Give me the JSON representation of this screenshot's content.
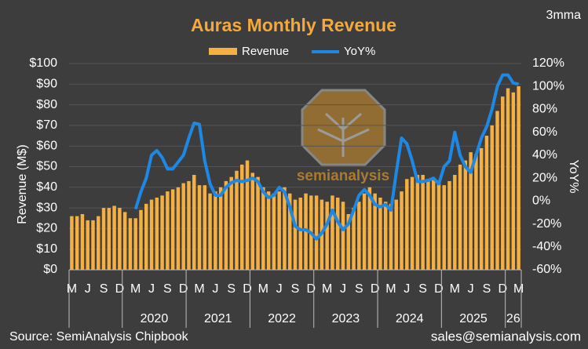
{
  "chart_data": {
    "type": "bar_line",
    "title": "Auras Monthly Revenue",
    "note": "3mma",
    "watermark": "semianalysis",
    "y_label": "Revenue (M$)",
    "y2_label": "YoY%",
    "source": "Source: SemiAnalysis Chipbook",
    "contact": "sales@semianalysis.com",
    "categories": [
      "M",
      null,
      null,
      "J",
      null,
      null,
      "S",
      null,
      null,
      "D",
      null,
      null,
      "M",
      null,
      null,
      "J",
      null,
      null,
      "S",
      null,
      null,
      "D",
      null,
      null,
      "M",
      null,
      null,
      "J",
      null,
      null,
      "S",
      null,
      null,
      "D",
      null,
      null,
      "M",
      null,
      null,
      "J",
      null,
      null,
      "S",
      null,
      null,
      "D",
      null,
      null,
      "M",
      null,
      null,
      "J",
      null,
      null,
      "S",
      null,
      null,
      "D",
      null,
      null,
      "M",
      null,
      null,
      "J",
      null,
      null,
      "S",
      null,
      null,
      "D",
      null,
      null,
      "M",
      null,
      null,
      "J",
      null,
      null,
      "S",
      null,
      null,
      "D",
      null,
      null,
      "M"
    ],
    "years": [
      "2020",
      "2021",
      "2022",
      "2023",
      "2024",
      "2025",
      "26"
    ],
    "series": [
      {
        "name": "Revenue",
        "color": "#f5b041",
        "values": [
          26,
          26,
          27,
          24,
          24,
          26,
          30,
          30,
          31,
          30,
          28,
          25,
          25,
          29,
          32,
          34,
          35,
          36,
          38,
          39,
          40,
          42,
          43,
          46,
          41,
          41,
          37,
          38,
          40,
          43,
          45,
          48,
          51,
          53,
          47,
          45,
          40,
          38,
          37,
          38,
          40,
          37,
          34,
          35,
          37,
          36,
          36,
          34,
          33,
          36,
          35,
          33,
          27,
          30,
          33,
          37,
          40,
          37,
          35,
          33,
          32,
          34,
          38,
          44,
          45,
          46,
          46,
          44,
          44,
          43,
          41,
          43,
          46,
          51,
          53,
          57,
          56,
          59,
          65,
          70,
          77,
          84,
          88,
          86,
          89
        ]
      },
      {
        "name": "YoY%",
        "color": "#1e88e5",
        "axis": "y2",
        "values": [
          null,
          null,
          null,
          null,
          null,
          null,
          null,
          null,
          null,
          null,
          null,
          null,
          -7,
          8,
          20,
          40,
          44,
          38,
          28,
          28,
          34,
          40,
          55,
          68,
          67,
          35,
          15,
          5,
          5,
          12,
          16,
          18,
          17,
          18,
          20,
          17,
          8,
          3,
          5,
          12,
          8,
          -5,
          -22,
          -25,
          -25,
          -28,
          -33,
          -28,
          -20,
          -8,
          -18,
          -25,
          -20,
          -8,
          5,
          10,
          5,
          -3,
          -5,
          -3,
          -8,
          25,
          55,
          50,
          35,
          17,
          17,
          18,
          20,
          15,
          30,
          35,
          60,
          40,
          30,
          25,
          40,
          55,
          65,
          80,
          100,
          110,
          110,
          103,
          102
        ]
      }
    ],
    "ylim": [
      0,
      100
    ],
    "yticks": [
      {
        "value": 0,
        "label": "$0"
      },
      {
        "value": 10,
        "label": "$10"
      },
      {
        "value": 20,
        "label": "$20"
      },
      {
        "value": 30,
        "label": "$30"
      },
      {
        "value": 40,
        "label": "$40"
      },
      {
        "value": 50,
        "label": "$50"
      },
      {
        "value": 60,
        "label": "$60"
      },
      {
        "value": 70,
        "label": "$70"
      },
      {
        "value": 80,
        "label": "$80"
      },
      {
        "value": 90,
        "label": "$90"
      },
      {
        "value": 100,
        "label": "$100"
      }
    ],
    "y2lim": [
      -60,
      120
    ],
    "y2ticks": [
      {
        "value": -60,
        "label": "-60%"
      },
      {
        "value": -40,
        "label": "-40%"
      },
      {
        "value": -20,
        "label": "-20%"
      },
      {
        "value": 0,
        "label": "0%"
      },
      {
        "value": 20,
        "label": "20%"
      },
      {
        "value": 40,
        "label": "40%"
      },
      {
        "value": 60,
        "label": "60%"
      },
      {
        "value": 80,
        "label": "80%"
      },
      {
        "value": 100,
        "label": "100%"
      },
      {
        "value": 120,
        "label": "120%"
      }
    ],
    "grid": true
  }
}
